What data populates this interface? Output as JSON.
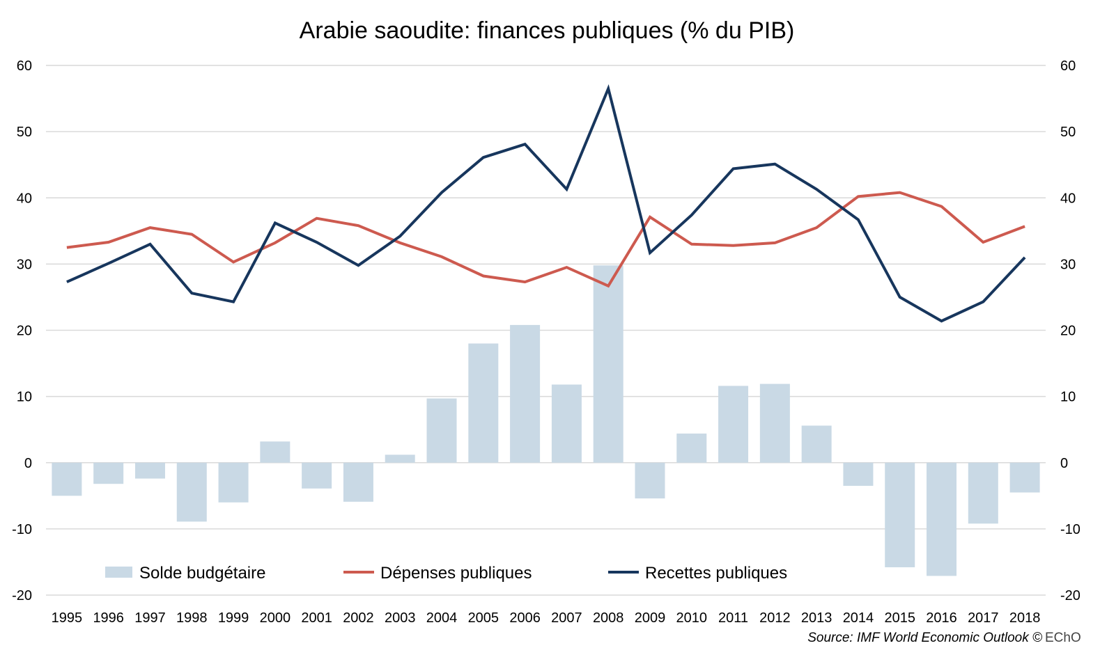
{
  "chart_data": {
    "type": "bar+line",
    "title": "Arabie saoudite: finances publiques (% du PIB)",
    "source": "Source: IMF World Economic Outlook ©",
    "logo_text": "EChO",
    "categories": [
      "1995",
      "1996",
      "1997",
      "1998",
      "1999",
      "2000",
      "2001",
      "2002",
      "2003",
      "2004",
      "2005",
      "2006",
      "2007",
      "2008",
      "2009",
      "2010",
      "2011",
      "2012",
      "2013",
      "2014",
      "2015",
      "2016",
      "2017",
      "2018"
    ],
    "ylim": [
      -20,
      60
    ],
    "yticks": [
      "-20",
      "-10",
      "0",
      "10",
      "20",
      "30",
      "40",
      "50",
      "60"
    ],
    "grid": true,
    "legend_position": "bottom-inside",
    "series": [
      {
        "name": "Solde budgétaire",
        "type": "bar",
        "color": "#c9d9e5",
        "values": [
          -5.0,
          -3.2,
          -2.4,
          -8.9,
          -6.0,
          3.2,
          -3.9,
          -5.9,
          1.2,
          9.7,
          18.0,
          20.8,
          11.8,
          29.8,
          -5.4,
          4.4,
          11.6,
          11.9,
          5.6,
          -3.5,
          -15.8,
          -17.1,
          -9.2,
          -4.5
        ]
      },
      {
        "name": "Dépenses publiques",
        "type": "line",
        "color": "#cd5a4f",
        "values": [
          32.5,
          33.3,
          35.5,
          34.5,
          30.3,
          33.2,
          36.9,
          35.8,
          33.2,
          31.1,
          28.2,
          27.3,
          29.5,
          26.7,
          37.1,
          33.0,
          32.8,
          33.2,
          35.5,
          40.2,
          40.8,
          38.7,
          33.3,
          35.7
        ]
      },
      {
        "name": "Recettes publiques",
        "type": "line",
        "color": "#17365d",
        "values": [
          27.3,
          30.1,
          33.0,
          25.6,
          24.3,
          36.2,
          33.3,
          29.8,
          34.2,
          40.8,
          46.1,
          48.1,
          41.3,
          56.5,
          31.7,
          37.4,
          44.4,
          45.1,
          41.3,
          36.7,
          25.0,
          21.4,
          24.3,
          31.0
        ]
      }
    ]
  }
}
